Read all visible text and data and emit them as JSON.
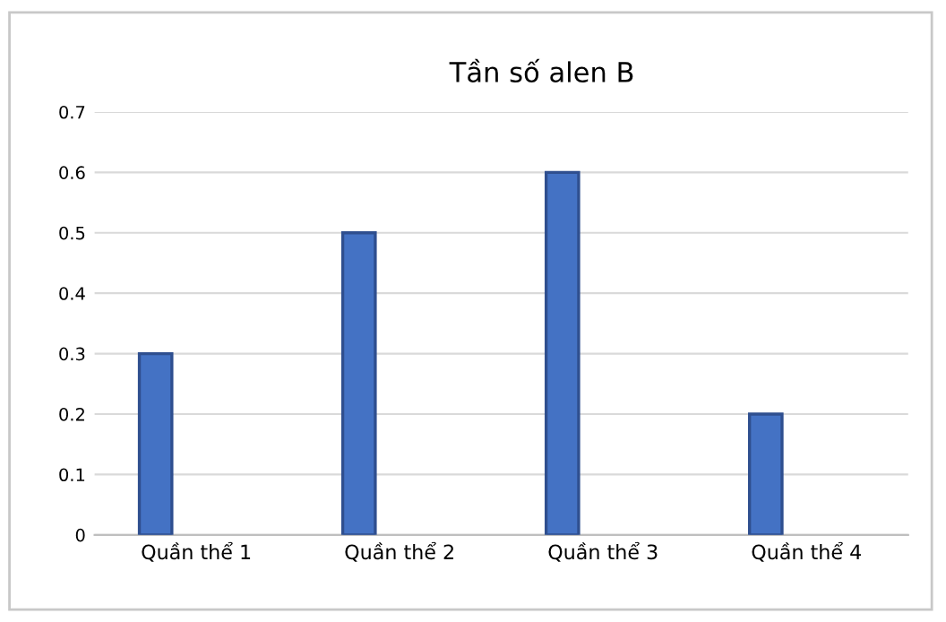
{
  "chart_data": {
    "type": "bar",
    "title": "Tần số alen B",
    "categories": [
      "Quần thể 1",
      "Quần thể 2",
      "Quần thể 3",
      "Quần thể 4"
    ],
    "values": [
      0.3,
      0.5,
      0.6,
      0.2
    ],
    "color": "#4472c4",
    "ylim": [
      0,
      0.7
    ],
    "yticks": [
      0,
      0.1,
      0.2,
      0.3,
      0.4,
      0.5,
      0.6,
      0.7
    ],
    "grid": "y",
    "legend": false
  }
}
